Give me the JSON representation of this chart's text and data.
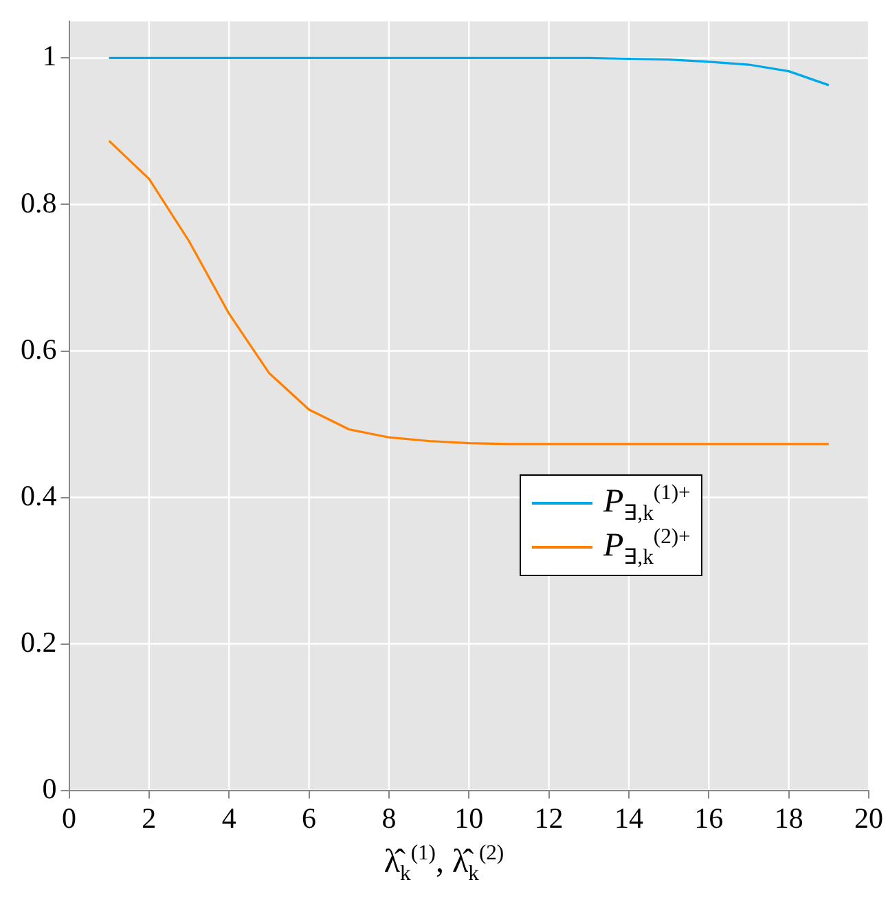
{
  "chart_data": {
    "type": "line",
    "xlabel": "λ̂$_{k}$$^{(1)}$, λ̂$_{k}$$^{(2)}$",
    "x": [
      1,
      2,
      3,
      4,
      5,
      6,
      7,
      8,
      9,
      10,
      11,
      12,
      13,
      14,
      15,
      16,
      17,
      18,
      19
    ],
    "series": [
      {
        "name": "P$_{∃,k}$$^{(1)+}$",
        "color": "#00a8e8",
        "values": [
          1,
          1,
          1,
          1,
          1,
          1,
          1,
          1,
          1,
          1,
          1,
          1,
          1,
          0.999,
          0.998,
          0.995,
          0.991,
          0.982,
          0.963
        ]
      },
      {
        "name": "P$_{∃,k}$$^{(2)+}$",
        "color": "#ff8000",
        "values": [
          0.887,
          0.835,
          0.75,
          0.651,
          0.57,
          0.52,
          0.493,
          0.482,
          0.477,
          0.474,
          0.473,
          0.473,
          0.473,
          0.473,
          0.473,
          0.473,
          0.473,
          0.473,
          0.473
        ]
      }
    ],
    "xlim": [
      0,
      20
    ],
    "xticks": [
      0,
      2,
      4,
      6,
      8,
      10,
      12,
      14,
      16,
      18,
      20
    ],
    "ylim": [
      0,
      1.05
    ],
    "yticks": [
      0,
      0.2,
      0.4,
      0.6,
      0.8,
      1
    ],
    "grid": true,
    "legend": "right",
    "marker": "none",
    "line_style": "solid"
  }
}
